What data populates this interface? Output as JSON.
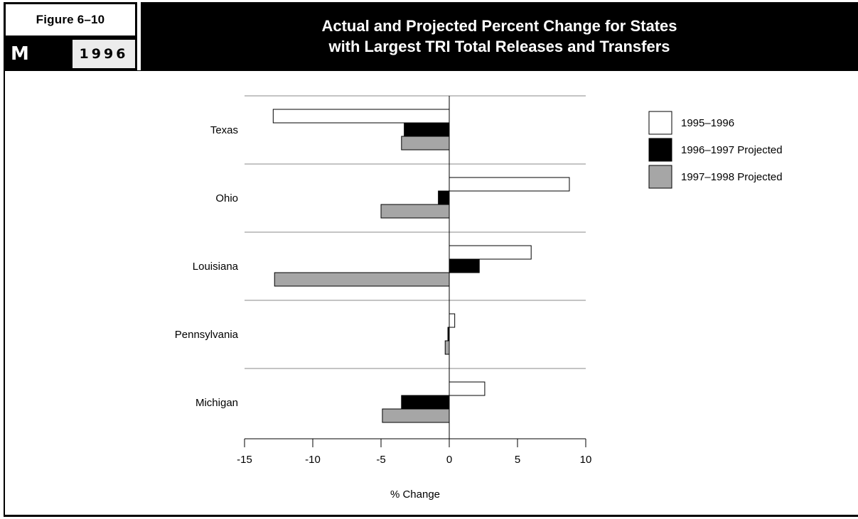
{
  "header": {
    "figure_label": "Figure 6–10",
    "section_letter": "M",
    "year": "1996",
    "title_line1": "Actual and Projected Percent Change for States",
    "title_line2": "with Largest TRI Total Releases and Transfers"
  },
  "chart_data": {
    "type": "bar",
    "orientation": "horizontal",
    "title": "Actual and Projected Percent Change for States with Largest TRI Total Releases and Transfers",
    "xlabel": "% Change",
    "ylabel": "",
    "xlim": [
      -15,
      10
    ],
    "xticks": [
      -15,
      -10,
      -5,
      0,
      5,
      10
    ],
    "grid": "horizontal separators between categories",
    "legend_position": "right",
    "categories": [
      "Texas",
      "Ohio",
      "Louisiana",
      "Pennsylvania",
      "Michigan"
    ],
    "series": [
      {
        "name": "1995–1996",
        "color": "#ffffff",
        "values": [
          -12.9,
          8.8,
          6.0,
          0.4,
          2.6
        ]
      },
      {
        "name": "1996–1997 Projected",
        "color": "#000000",
        "values": [
          -3.3,
          -0.8,
          2.2,
          -0.1,
          -3.5
        ]
      },
      {
        "name": "1997–1998 Projected",
        "color": "#a6a6a6",
        "values": [
          -3.5,
          -5.0,
          -12.8,
          -0.3,
          -4.9
        ]
      }
    ]
  }
}
